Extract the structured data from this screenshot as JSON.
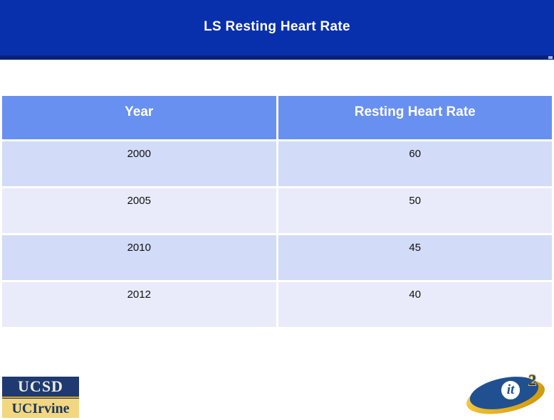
{
  "slide": {
    "title": "LS Resting Heart Rate"
  },
  "table": {
    "columns": [
      "Year",
      "Resting Heart Rate"
    ],
    "rows": [
      {
        "year": "2000",
        "rate": "60"
      },
      {
        "year": "2005",
        "rate": "50"
      },
      {
        "year": "2010",
        "rate": "45"
      },
      {
        "year": "2012",
        "rate": "40"
      }
    ]
  },
  "chart_data": {
    "type": "table",
    "title": "LS Resting Heart Rate",
    "columns": [
      "Year",
      "Resting Heart Rate"
    ],
    "rows": [
      [
        "2000",
        60
      ],
      [
        "2005",
        50
      ],
      [
        "2010",
        45
      ],
      [
        "2012",
        40
      ]
    ]
  },
  "logos": {
    "ucsd_label": "UCSD",
    "uci_label": "UCIrvine",
    "it2": {
      "it_label": "it",
      "sup_label": "2"
    }
  },
  "colors": {
    "banner_blue": "#0830AC",
    "banner_strip_navy": "#0A2177",
    "table_header_blue": "#6890F0",
    "row_dark_lavender": "#D2DBF7",
    "row_light_lavender": "#E9EBFA",
    "ucsd_navy": "#1E3A70",
    "ucsd_gold": "#D9A530",
    "uci_gold_background": "#F2D780",
    "it2_blue": "#20508F",
    "it2_gold": "#E8B93A"
  }
}
